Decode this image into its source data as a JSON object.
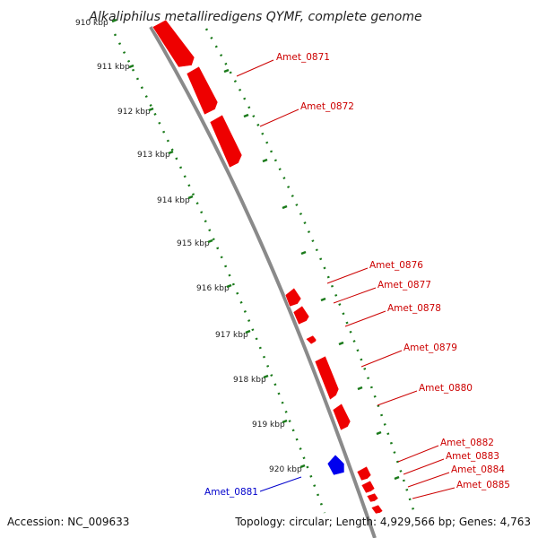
{
  "title": "Alkaliphilus metalliredigens QYMF, complete genome",
  "footer": {
    "accession": "Accession: NC_009633",
    "summary": "Topology: circular; Length: 4,929,566 bp; Genes: 4,763"
  },
  "colors": {
    "forward_gene": "#ee0000",
    "reverse_gene": "#0000ee",
    "backbone": "#8a8a8a",
    "ticks": "#1a7a1a",
    "label_forward": "#cc0000",
    "label_reverse": "#0000cc"
  },
  "kbp_labels": [
    "910 kbp",
    "911 kbp",
    "912 kbp",
    "913 kbp",
    "914 kbp",
    "915 kbp",
    "916 kbp",
    "917 kbp",
    "918 kbp",
    "919 kbp",
    "920 kbp"
  ],
  "genes": [
    {
      "id": "top",
      "label": "",
      "strand": "forward"
    },
    {
      "id": "g0871",
      "label": "Amet_0871",
      "strand": "forward"
    },
    {
      "id": "g0872",
      "label": "Amet_0872",
      "strand": "forward"
    },
    {
      "id": "g0876",
      "label": "Amet_0876",
      "strand": "forward"
    },
    {
      "id": "g0877",
      "label": "Amet_0877",
      "strand": "forward"
    },
    {
      "id": "g0878",
      "label": "Amet_0878",
      "strand": "forward"
    },
    {
      "id": "g0879",
      "label": "Amet_0879",
      "strand": "forward"
    },
    {
      "id": "g0880",
      "label": "Amet_0880",
      "strand": "forward"
    },
    {
      "id": "g0881",
      "label": "Amet_0881",
      "strand": "reverse"
    },
    {
      "id": "g0882",
      "label": "Amet_0882",
      "strand": "forward"
    },
    {
      "id": "g0883",
      "label": "Amet_0883",
      "strand": "forward"
    },
    {
      "id": "g0884",
      "label": "Amet_0884",
      "strand": "forward"
    },
    {
      "id": "g0885",
      "label": "Amet_0885",
      "strand": "forward"
    }
  ]
}
